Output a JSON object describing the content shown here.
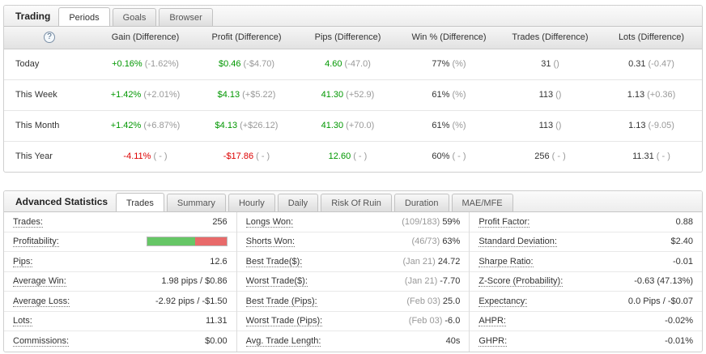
{
  "colors": {
    "positive": "#009700",
    "negative": "#dd0000",
    "muted": "#999999",
    "bar-green": "#66c666",
    "bar-red": "#e86a6a"
  },
  "trading": {
    "title": "Trading",
    "help_icon": "?",
    "tabs": [
      "Periods",
      "Goals",
      "Browser"
    ],
    "active_tab": "Periods",
    "columns": [
      "Gain (Difference)",
      "Profit (Difference)",
      "Pips (Difference)",
      "Win % (Difference)",
      "Trades (Difference)",
      "Lots (Difference)"
    ],
    "rows": [
      {
        "label": "Today",
        "gain": {
          "v": "+0.16%",
          "d": "(-1.62%)"
        },
        "profit": {
          "v": "$0.46",
          "d": "(-$4.70)"
        },
        "pips": {
          "v": "4.60",
          "d": "(-47.0)"
        },
        "win": {
          "v": "77%",
          "d": "(%)"
        },
        "trades": {
          "v": "31",
          "d": "()"
        },
        "lots": {
          "v": "0.31",
          "d": "(-0.47)"
        }
      },
      {
        "label": "This Week",
        "gain": {
          "v": "+1.42%",
          "d": "(+2.01%)"
        },
        "profit": {
          "v": "$4.13",
          "d": "(+$5.22)"
        },
        "pips": {
          "v": "41.30",
          "d": "(+52.9)"
        },
        "win": {
          "v": "61%",
          "d": "(%)"
        },
        "trades": {
          "v": "113",
          "d": "()"
        },
        "lots": {
          "v": "1.13",
          "d": "(+0.36)"
        }
      },
      {
        "label": "This Month",
        "gain": {
          "v": "+1.42%",
          "d": "(+6.87%)"
        },
        "profit": {
          "v": "$4.13",
          "d": "(+$26.12)"
        },
        "pips": {
          "v": "41.30",
          "d": "(+70.0)"
        },
        "win": {
          "v": "61%",
          "d": "(%)"
        },
        "trades": {
          "v": "113",
          "d": "()"
        },
        "lots": {
          "v": "1.13",
          "d": "(-9.05)"
        }
      },
      {
        "label": "This Year",
        "gain": {
          "v": "-4.11%",
          "d": "( - )"
        },
        "profit": {
          "v": "-$17.86",
          "d": "( - )"
        },
        "pips": {
          "v": "12.60",
          "d": "( - )"
        },
        "win": {
          "v": "60%",
          "d": "( - )"
        },
        "trades": {
          "v": "256",
          "d": "( - )"
        },
        "lots": {
          "v": "11.31",
          "d": "( - )"
        }
      }
    ]
  },
  "advanced": {
    "title": "Advanced Statistics",
    "tabs": [
      "Trades",
      "Summary",
      "Hourly",
      "Daily",
      "Risk Of Ruin",
      "Duration",
      "MAE/MFE"
    ],
    "active_tab": "Trades",
    "profitability": {
      "win_pct": 61,
      "loss_pct": 39
    },
    "col1": [
      {
        "label": "Trades:",
        "value": "256"
      },
      {
        "label": "Profitability:",
        "value": ""
      },
      {
        "label": "Pips:",
        "value": "12.6"
      },
      {
        "label": "Average Win:",
        "value": "1.98 pips / $0.86"
      },
      {
        "label": "Average Loss:",
        "value": "-2.92 pips / -$1.50"
      },
      {
        "label": "Lots:",
        "value": "11.31"
      },
      {
        "label": "Commissions:",
        "value": "$0.00"
      }
    ],
    "col2": [
      {
        "label": "Longs Won:",
        "pre": "(109/183)",
        "value": "59%"
      },
      {
        "label": "Shorts Won:",
        "pre": "(46/73)",
        "value": "63%"
      },
      {
        "label": "Best Trade($):",
        "pre": "(Jan 21)",
        "value": "24.72"
      },
      {
        "label": "Worst Trade($):",
        "pre": "(Jan 21)",
        "value": "-7.70"
      },
      {
        "label": "Best Trade (Pips):",
        "pre": "(Feb 03)",
        "value": "25.0"
      },
      {
        "label": "Worst Trade (Pips):",
        "pre": "(Feb 03)",
        "value": "-6.0"
      },
      {
        "label": "Avg. Trade Length:",
        "pre": "",
        "value": "40s"
      }
    ],
    "col3": [
      {
        "label": "Profit Factor:",
        "value": "0.88"
      },
      {
        "label": "Standard Deviation:",
        "value": "$2.40"
      },
      {
        "label": "Sharpe Ratio:",
        "value": "-0.01"
      },
      {
        "label": "Z-Score (Probability):",
        "value": "-0.63 (47.13%)"
      },
      {
        "label": "Expectancy:",
        "value": "0.0 Pips / -$0.07"
      },
      {
        "label": "AHPR:",
        "value": "-0.02%"
      },
      {
        "label": "GHPR:",
        "value": "-0.01%"
      }
    ]
  }
}
